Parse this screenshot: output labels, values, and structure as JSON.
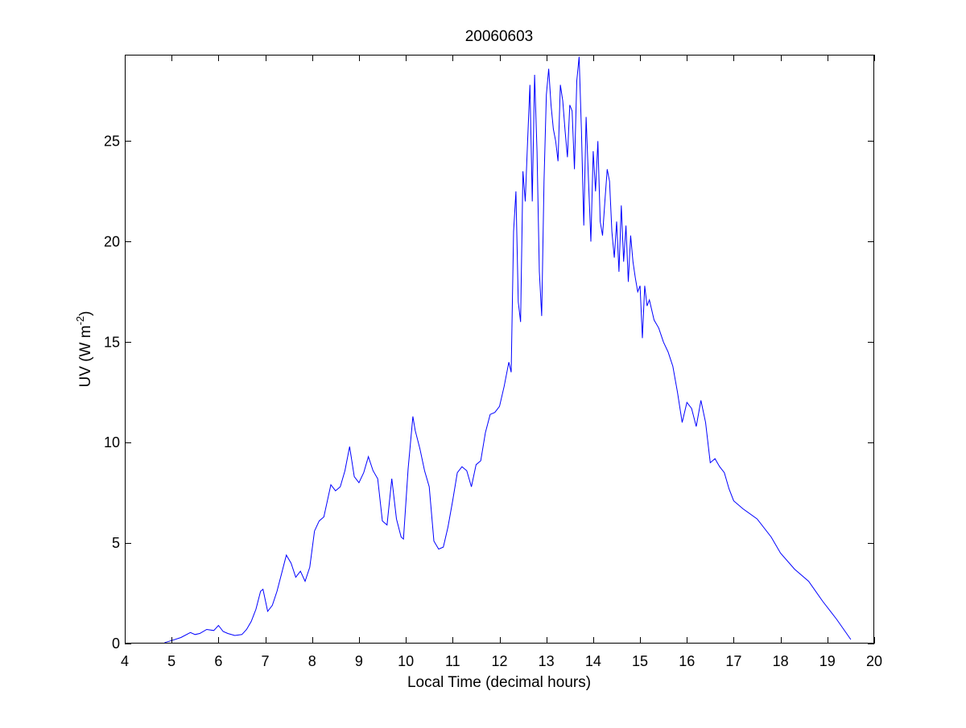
{
  "chart_data": {
    "type": "line",
    "title": "20060603",
    "xlabel": "Local Time (decimal hours)",
    "ylabel": {
      "main": "UV (W m",
      "superscript": "-2",
      "close": ")"
    },
    "xlim": [
      4,
      20
    ],
    "ylim": [
      0,
      29.3
    ],
    "xticks": [
      "4",
      "5",
      "6",
      "7",
      "8",
      "9",
      "10",
      "11",
      "12",
      "13",
      "14",
      "15",
      "16",
      "17",
      "18",
      "19",
      "20"
    ],
    "yticks": [
      "0",
      "5",
      "10",
      "15",
      "20",
      "25"
    ],
    "grid": false,
    "line_color": "#0000ff",
    "series": [
      {
        "x": [
          4.85,
          5.0,
          5.2,
          5.4,
          5.5,
          5.6,
          5.75,
          5.9,
          6.0,
          6.1,
          6.2,
          6.35,
          6.5,
          6.6,
          6.7,
          6.8,
          6.9,
          6.95,
          7.05,
          7.15,
          7.25,
          7.35,
          7.45,
          7.55,
          7.65,
          7.75,
          7.85,
          7.95,
          8.05,
          8.15,
          8.25,
          8.4,
          8.5,
          8.6,
          8.7,
          8.8,
          8.9,
          9.0,
          9.1,
          9.2,
          9.3,
          9.4,
          9.5,
          9.6,
          9.7,
          9.8,
          9.9,
          9.95,
          10.05,
          10.15,
          10.2,
          10.3,
          10.4,
          10.5,
          10.6,
          10.7,
          10.8,
          10.9,
          11.0,
          11.1,
          11.2,
          11.3,
          11.4,
          11.5,
          11.6,
          11.7,
          11.8,
          11.9,
          12.0,
          12.1,
          12.2,
          12.25,
          12.3,
          12.35,
          12.4,
          12.45,
          12.5,
          12.55,
          12.6,
          12.65,
          12.7,
          12.75,
          12.8,
          12.85,
          12.9,
          12.95,
          13.0,
          13.05,
          13.1,
          13.15,
          13.2,
          13.25,
          13.3,
          13.35,
          13.4,
          13.45,
          13.5,
          13.55,
          13.6,
          13.65,
          13.7,
          13.75,
          13.8,
          13.85,
          13.9,
          13.95,
          14.0,
          14.05,
          14.1,
          14.15,
          14.2,
          14.25,
          14.3,
          14.35,
          14.4,
          14.45,
          14.5,
          14.55,
          14.6,
          14.65,
          14.7,
          14.75,
          14.8,
          14.85,
          14.9,
          14.95,
          15.0,
          15.05,
          15.1,
          15.15,
          15.2,
          15.3,
          15.4,
          15.5,
          15.6,
          15.7,
          15.8,
          15.9,
          16.0,
          16.1,
          16.2,
          16.3,
          16.4,
          16.5,
          16.6,
          16.7,
          16.8,
          16.9,
          17.0,
          17.2,
          17.5,
          17.8,
          18.0,
          18.3,
          18.6,
          18.9,
          19.2,
          19.5
        ],
        "y": [
          0.05,
          0.15,
          0.3,
          0.55,
          0.45,
          0.5,
          0.7,
          0.65,
          0.9,
          0.6,
          0.5,
          0.4,
          0.45,
          0.7,
          1.1,
          1.7,
          2.6,
          2.7,
          1.6,
          1.9,
          2.6,
          3.5,
          4.4,
          4.0,
          3.3,
          3.6,
          3.1,
          3.8,
          5.6,
          6.1,
          6.3,
          7.9,
          7.6,
          7.8,
          8.6,
          9.8,
          8.3,
          8.0,
          8.5,
          9.3,
          8.6,
          8.2,
          6.1,
          5.9,
          8.2,
          6.2,
          5.3,
          5.2,
          8.7,
          11.3,
          10.6,
          9.7,
          8.6,
          7.8,
          5.1,
          4.7,
          4.8,
          5.8,
          7.1,
          8.5,
          8.8,
          8.6,
          7.8,
          8.9,
          9.1,
          10.5,
          11.4,
          11.5,
          11.8,
          12.8,
          14.0,
          13.5,
          20.5,
          22.5,
          17.0,
          16.0,
          23.5,
          22.0,
          25.0,
          27.8,
          22.0,
          28.3,
          24.5,
          18.5,
          16.3,
          23.0,
          27.3,
          28.6,
          26.8,
          25.6,
          25.0,
          24.0,
          27.8,
          27.0,
          25.5,
          24.2,
          26.8,
          26.5,
          23.6,
          28.0,
          29.2,
          25.5,
          20.8,
          26.2,
          23.0,
          20.0,
          24.5,
          22.5,
          25.0,
          21.0,
          20.3,
          22.0,
          23.6,
          23.0,
          20.5,
          19.2,
          21.0,
          18.5,
          21.8,
          19.0,
          20.8,
          18.0,
          20.3,
          19.0,
          18.2,
          17.5,
          17.8,
          15.2,
          17.8,
          16.8,
          17.1,
          16.1,
          15.7,
          15.0,
          14.5,
          13.8,
          12.5,
          11.0,
          12.0,
          11.7,
          10.8,
          12.1,
          11.0,
          9.0,
          9.2,
          8.8,
          8.5,
          7.7,
          7.1,
          6.7,
          6.2,
          5.3,
          4.5,
          3.7,
          3.1,
          2.1,
          1.2,
          0.2
        ]
      }
    ]
  }
}
